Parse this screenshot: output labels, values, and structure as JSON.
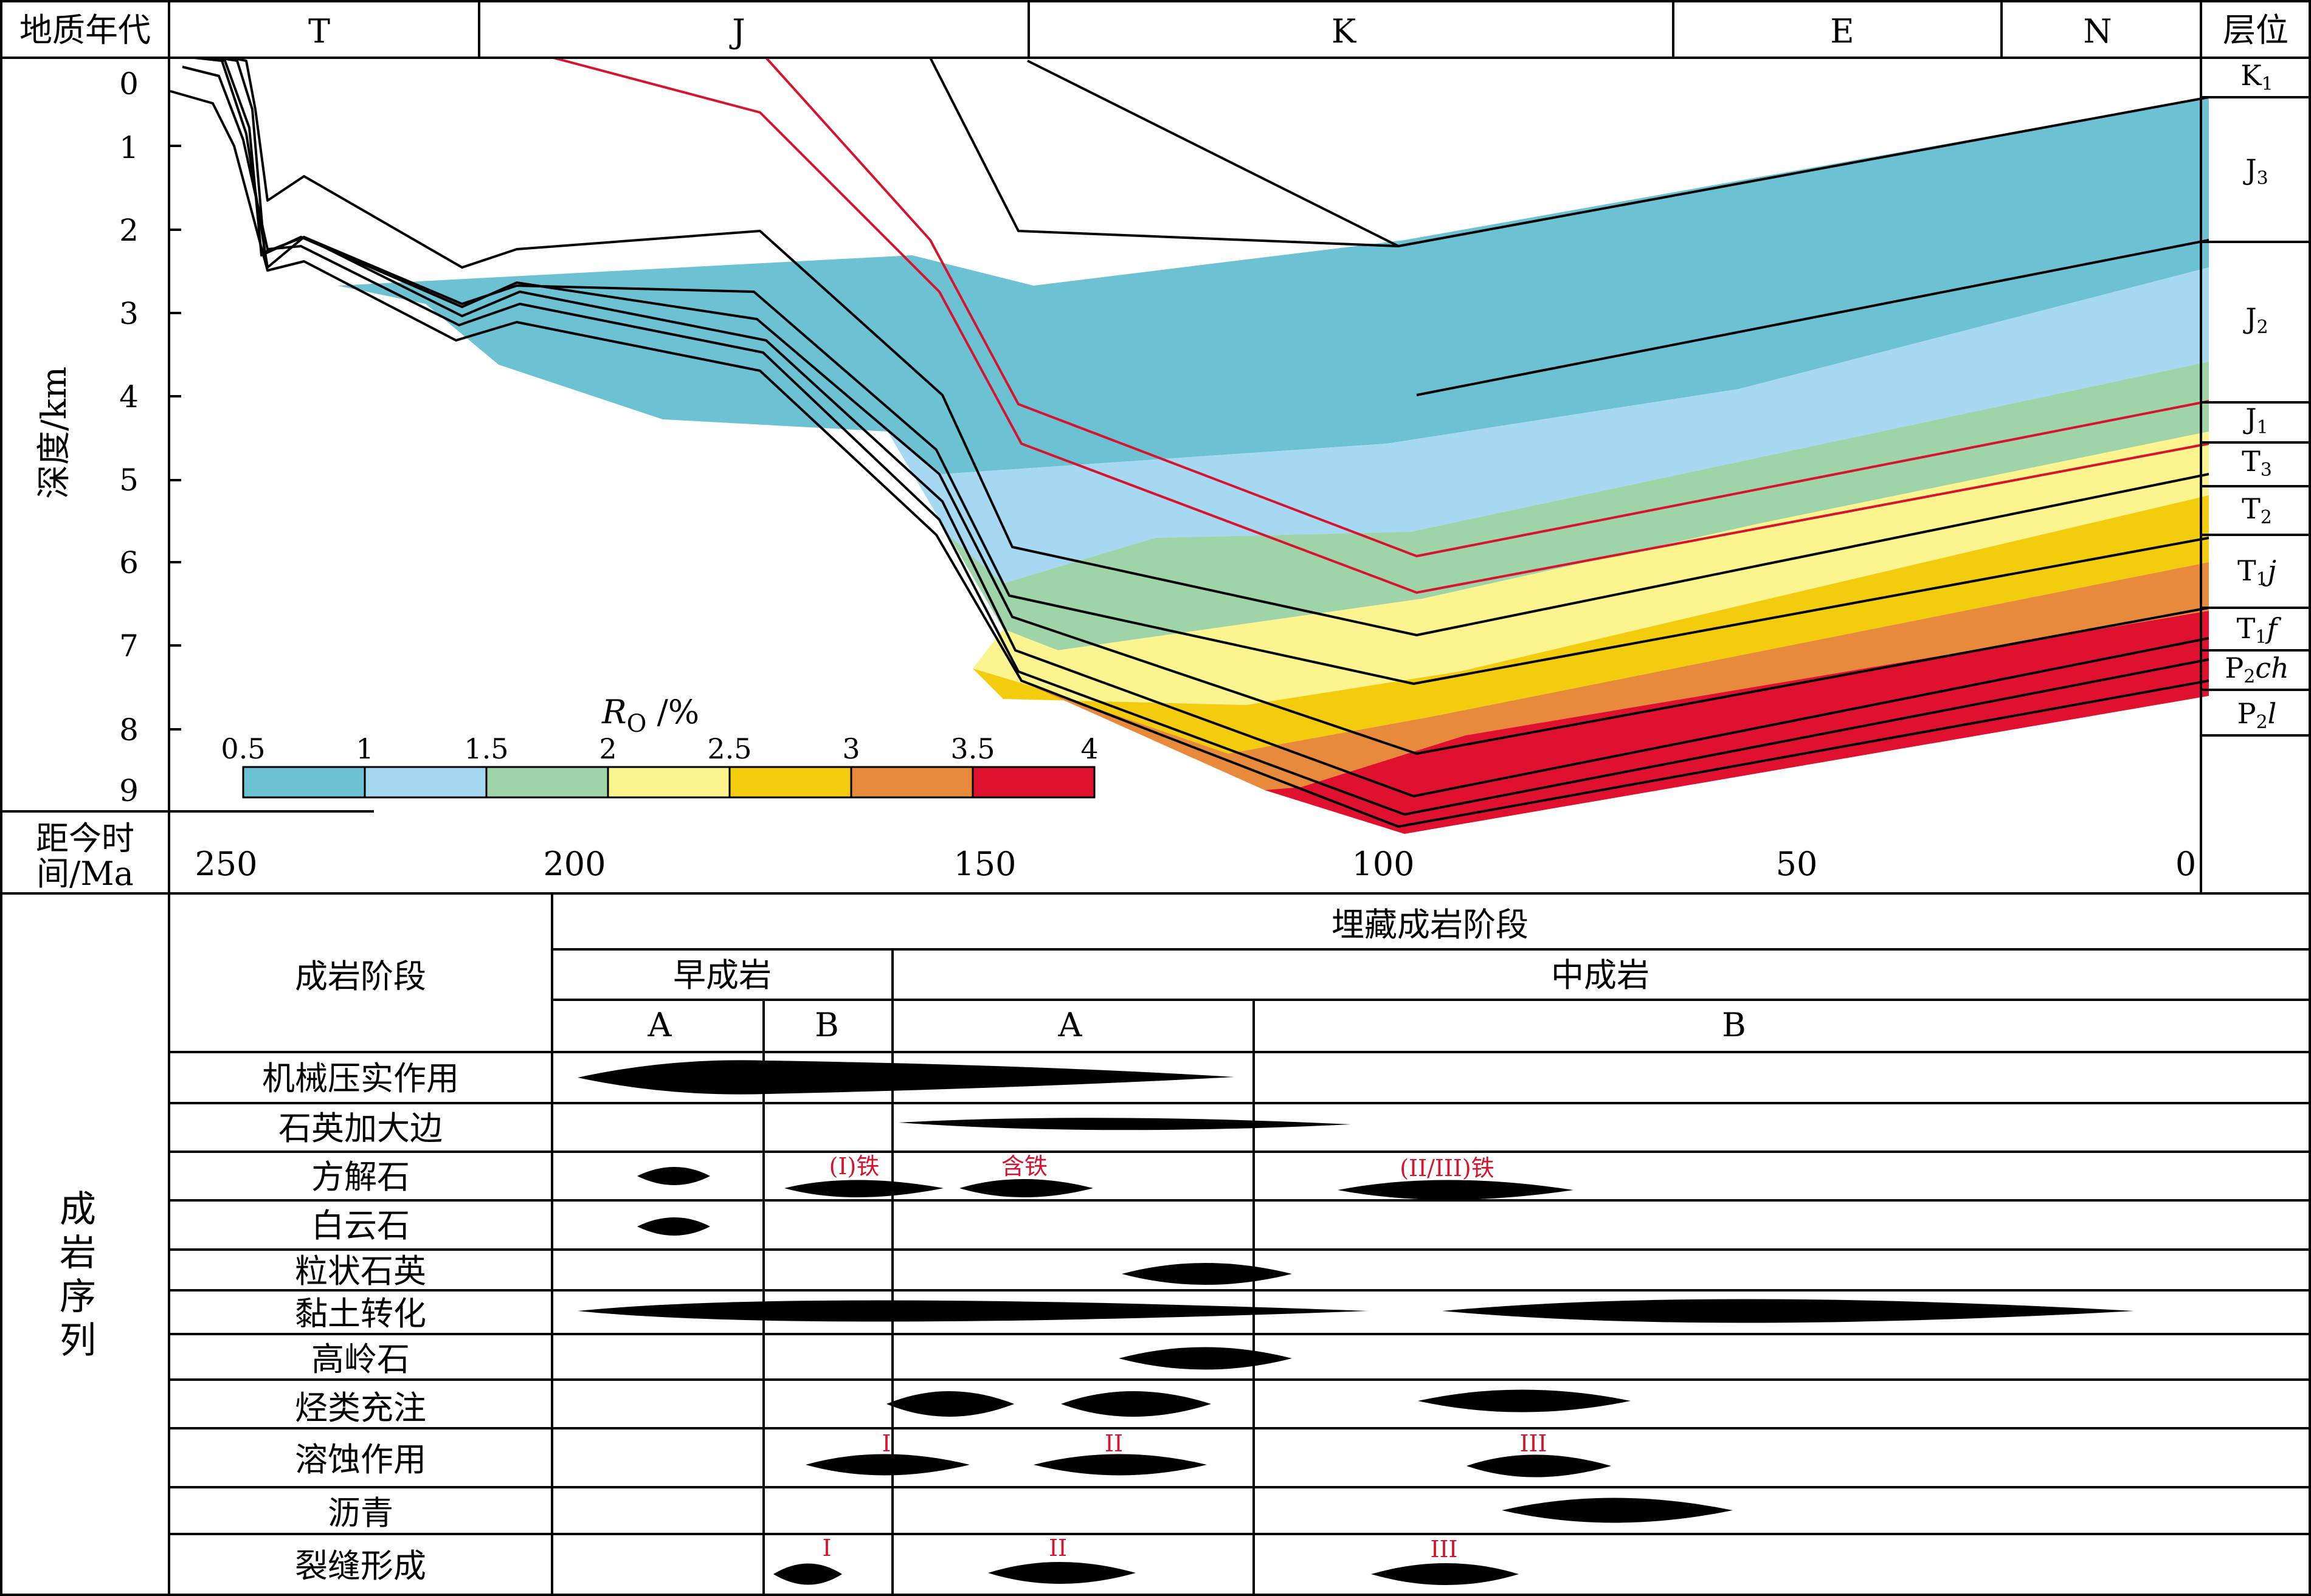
{
  "header": {
    "time_label": "地质年代",
    "periods": [
      "T",
      "J",
      "K",
      "E",
      "N"
    ],
    "layer_label": "层位"
  },
  "depth_axis": {
    "label": "深度/km",
    "ticks": [
      "0",
      "1",
      "2",
      "3",
      "4",
      "5",
      "6",
      "7",
      "8",
      "9"
    ]
  },
  "time_axis": {
    "label_line1": "距今时",
    "label_line2": "间/Ma",
    "ticks": [
      "250",
      "200",
      "150",
      "100",
      "50",
      "0"
    ]
  },
  "layers": [
    {
      "base": "K",
      "sub": "1",
      "suffix": ""
    },
    {
      "base": "J",
      "sub": "3",
      "suffix": ""
    },
    {
      "base": "J",
      "sub": "2",
      "suffix": ""
    },
    {
      "base": "J",
      "sub": "1",
      "suffix": ""
    },
    {
      "base": "T",
      "sub": "3",
      "suffix": ""
    },
    {
      "base": "T",
      "sub": "2",
      "suffix": ""
    },
    {
      "base": "T",
      "sub": "1",
      "suffix": "j"
    },
    {
      "base": "T",
      "sub": "1",
      "suffix": "f"
    },
    {
      "base": "P",
      "sub": "2",
      "suffix": "ch"
    },
    {
      "base": "P",
      "sub": "2",
      "suffix": "l"
    }
  ],
  "legend": {
    "title_main": "R",
    "title_sub": "O",
    "title_unit": " /%",
    "ticks": [
      "0.5",
      "1",
      "1.5",
      "2",
      "2.5",
      "3",
      "3.5",
      "4"
    ],
    "colors": [
      "#6cc1d2",
      "#a6d8f2",
      "#9fd3a8",
      "#fbf48f",
      "#f3cd0d",
      "#e88a3b",
      "#e0102f"
    ]
  },
  "colors": {
    "ro_zone_1": "#6cc1d2",
    "ro_zone_2": "#a6d8f2",
    "ro_zone_3": "#9fd3a8",
    "ro_zone_4": "#fbf48f",
    "ro_zone_5": "#f3cd0d",
    "ro_zone_6": "#e88a3b",
    "ro_zone_7": "#e0102f",
    "burial_line": "#000000",
    "burial_line_highlight": "#d6142e",
    "stage_annotation": "#d6142e"
  },
  "diagenesis": {
    "left_title": "成岩序列",
    "stage_header": "成岩阶段",
    "burial_stage": "埋藏成岩阶段",
    "early": "早成岩",
    "middle": "中成岩",
    "substages": [
      "A",
      "B",
      "A",
      "B"
    ],
    "rows": [
      {
        "label": "机械压实作用",
        "notes": []
      },
      {
        "label": "石英加大边",
        "notes": []
      },
      {
        "label": "方解石",
        "notes": [
          "(I)铁",
          "含铁",
          "(II/III)铁"
        ]
      },
      {
        "label": "白云石",
        "notes": []
      },
      {
        "label": "粒状石英",
        "notes": []
      },
      {
        "label": "黏土转化",
        "notes": []
      },
      {
        "label": "高岭石",
        "notes": []
      },
      {
        "label": "烃类充注",
        "notes": []
      },
      {
        "label": "溶蚀作用",
        "notes": [
          "I",
          "II",
          "III"
        ]
      },
      {
        "label": "沥青",
        "notes": []
      },
      {
        "label": "裂缝形成",
        "notes": [
          "I",
          "II",
          "III"
        ]
      }
    ]
  }
}
